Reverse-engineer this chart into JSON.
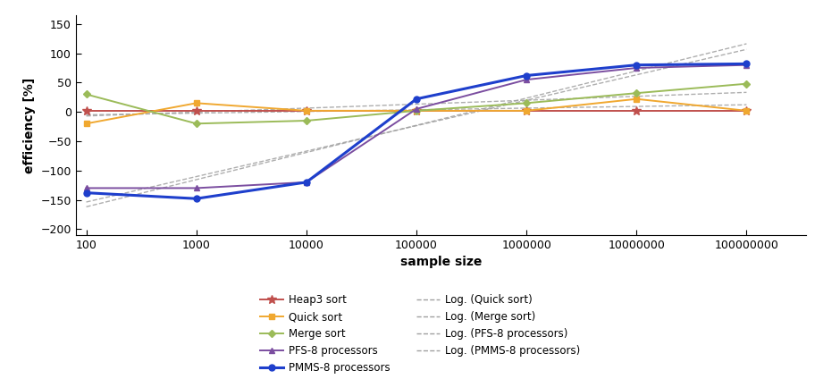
{
  "x": [
    100,
    1000,
    10000,
    100000,
    1000000,
    10000000,
    100000000
  ],
  "heap3_sort": [
    2,
    2,
    2,
    2,
    2,
    2,
    2
  ],
  "quick_sort": [
    -20,
    15,
    2,
    2,
    2,
    22,
    2
  ],
  "merge_sort": [
    30,
    -20,
    -15,
    2,
    15,
    32,
    48
  ],
  "pfs_8": [
    -130,
    -130,
    -120,
    5,
    55,
    75,
    80
  ],
  "pmms_8": [
    -138,
    -148,
    -120,
    22,
    62,
    80,
    82
  ],
  "ylabel": "efficiency [%]",
  "xlabel": "sample size",
  "ylim": [
    -210,
    165
  ],
  "yticks": [
    -200,
    -150,
    -100,
    -50,
    0,
    50,
    100,
    150
  ],
  "xticks": [
    100,
    1000,
    10000,
    100000,
    1000000,
    10000000,
    100000000
  ],
  "xtick_labels": [
    "100",
    "1000",
    "10000",
    "100000",
    "1000000",
    "10000000",
    "100000000"
  ],
  "colors": {
    "heap3": "#c0504d",
    "quick": "#f0a830",
    "merge": "#9bbb59",
    "pfs8": "#7b4ea0",
    "pmms8": "#1e3fcc"
  },
  "trendline_color": "#a0a0a0",
  "figsize": [
    9.4,
    4.24
  ],
  "dpi": 100
}
